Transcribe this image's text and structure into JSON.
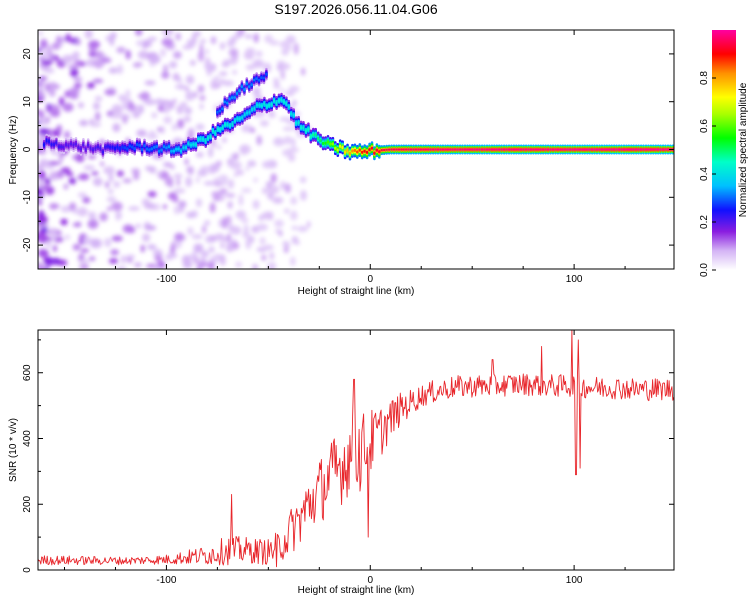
{
  "title": "S197.2026.056.11.04.G06",
  "colors": {
    "snr_line": "#e8262b",
    "background": "#ffffff",
    "frame": "#000000"
  },
  "chart_data": [
    {
      "type": "heatmap",
      "xlabel": "Height of straight line (km)",
      "ylabel": "Frequency (Hz)",
      "xlim": [
        -163,
        149
      ],
      "ylim": [
        -25,
        25
      ],
      "xticks": [
        -100,
        0,
        100
      ],
      "xtick_labels": [
        "-100",
        "0",
        "100"
      ],
      "yticks": [
        -20,
        -10,
        0,
        10,
        20
      ],
      "ytick_labels": [
        "-20",
        "-10",
        "0",
        "10",
        "20"
      ],
      "colorbar": {
        "label": "Normalized spectral amplitude",
        "range": [
          0,
          1
        ],
        "ticks": [
          0.0,
          0.2,
          0.4,
          0.6,
          0.8
        ],
        "tick_labels": [
          "0.0",
          "0.2",
          "0.4",
          "0.6",
          "0.8"
        ],
        "colormap": "rainbow"
      },
      "ridge": {
        "description": "frequency track of dominant spectral peak",
        "x": [
          -160,
          -150,
          -140,
          -130,
          -120,
          -110,
          -100,
          -95,
          -90,
          -85,
          -80,
          -75,
          -70,
          -65,
          -60,
          -55,
          -50,
          -45,
          -42,
          -40,
          -38,
          -35,
          -30,
          -25,
          -20,
          -15,
          -10,
          -5,
          0,
          10,
          30,
          50,
          75,
          90,
          100,
          110,
          149
        ],
        "freq": [
          1.5,
          1,
          0.5,
          0,
          0.5,
          0.5,
          0,
          0,
          0.5,
          1.5,
          2.5,
          4,
          5,
          6,
          7.5,
          9,
          9.5,
          10.5,
          10,
          9,
          7,
          5,
          3.5,
          2,
          0.8,
          0.2,
          -0.5,
          -0.5,
          -0.3,
          0,
          0,
          0,
          0,
          0,
          0,
          0,
          0
        ],
        "amplitude": [
          0.25,
          0.2,
          0.2,
          0.22,
          0.28,
          0.3,
          0.32,
          0.36,
          0.38,
          0.4,
          0.42,
          0.42,
          0.42,
          0.4,
          0.38,
          0.4,
          0.42,
          0.42,
          0.42,
          0.4,
          0.4,
          0.42,
          0.45,
          0.5,
          0.6,
          0.7,
          0.8,
          0.88,
          0.92,
          0.96,
          0.98,
          0.99,
          0.99,
          0.99,
          1.0,
          1.0,
          1.0
        ]
      },
      "secondary_ridge": {
        "x": [
          -75,
          -70,
          -65,
          -60,
          -55,
          -50
        ],
        "freq": [
          8,
          10,
          12,
          13.5,
          14.5,
          15.5
        ],
        "amplitude": [
          0.3,
          0.32,
          0.33,
          0.32,
          0.3,
          0.28
        ]
      }
    },
    {
      "type": "line",
      "xlabel": "Height of straight line (km)",
      "ylabel": "SNR (10 * v/v)",
      "xlim": [
        -163,
        149
      ],
      "ylim": [
        0,
        730
      ],
      "xticks": [
        -100,
        0,
        100
      ],
      "xtick_labels": [
        "-100",
        "0",
        "100"
      ],
      "yticks": [
        0,
        200,
        400,
        600
      ],
      "ytick_labels": [
        "0",
        "200",
        "400",
        "600"
      ],
      "series": [
        {
          "name": "SNR",
          "trend_x": [
            -163,
            -120,
            -100,
            -80,
            -70,
            -60,
            -50,
            -45,
            -40,
            -35,
            -30,
            -25,
            -20,
            -15,
            -10,
            -5,
            0,
            5,
            10,
            15,
            20,
            25,
            30,
            40,
            50,
            60,
            70,
            80,
            90,
            100,
            110,
            120,
            130,
            149
          ],
          "trend_y": [
            30,
            28,
            32,
            45,
            60,
            60,
            55,
            70,
            110,
            150,
            200,
            240,
            280,
            310,
            350,
            370,
            390,
            420,
            460,
            490,
            510,
            530,
            540,
            555,
            560,
            560,
            565,
            565,
            560,
            560,
            555,
            555,
            550,
            550
          ],
          "noise_y": [
            15,
            12,
            15,
            30,
            45,
            40,
            40,
            50,
            70,
            80,
            90,
            100,
            110,
            120,
            120,
            110,
            100,
            80,
            60,
            50,
            40,
            35,
            35,
            35,
            35,
            35,
            35,
            35,
            35,
            35,
            35,
            35,
            35,
            35
          ],
          "spikes": [
            {
              "x": -68,
              "y": 230
            },
            {
              "x": -46,
              "y": 10
            },
            {
              "x": -8,
              "y": 580
            },
            {
              "x": -5,
              "y": 240
            },
            {
              "x": -1,
              "y": 100
            },
            {
              "x": 60,
              "y": 640
            },
            {
              "x": 84,
              "y": 680
            },
            {
              "x": 99,
              "y": 730
            },
            {
              "x": 101,
              "y": 290
            },
            {
              "x": 102,
              "y": 700
            },
            {
              "x": 103,
              "y": 310
            }
          ]
        }
      ]
    }
  ]
}
